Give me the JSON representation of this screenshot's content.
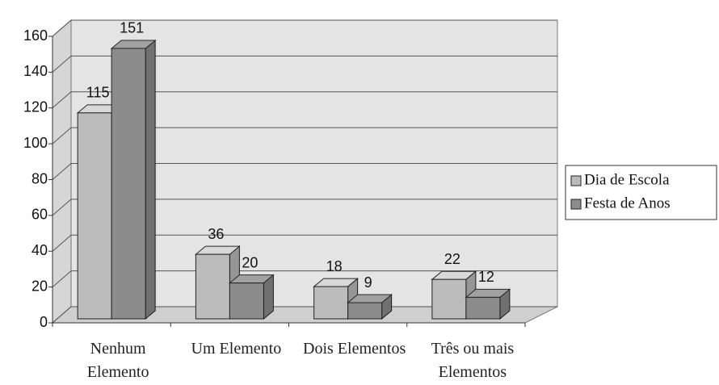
{
  "chart_data": {
    "type": "bar3d",
    "categories": [
      "Nenhum Elemento",
      "Um Elemento",
      "Dois Elementos",
      "Três ou mais Elementos"
    ],
    "series": [
      {
        "name": "Dia de Escola",
        "color": "#bcbcbc",
        "values": [
          115,
          36,
          18,
          22
        ]
      },
      {
        "name": "Festa de Anos",
        "color": "#8c8c8c",
        "values": [
          151,
          20,
          9,
          12
        ]
      }
    ],
    "ylim": [
      0,
      160
    ],
    "yticks": [
      0,
      20,
      40,
      60,
      80,
      100,
      120,
      140,
      160
    ],
    "grid": true,
    "legend": "right"
  }
}
